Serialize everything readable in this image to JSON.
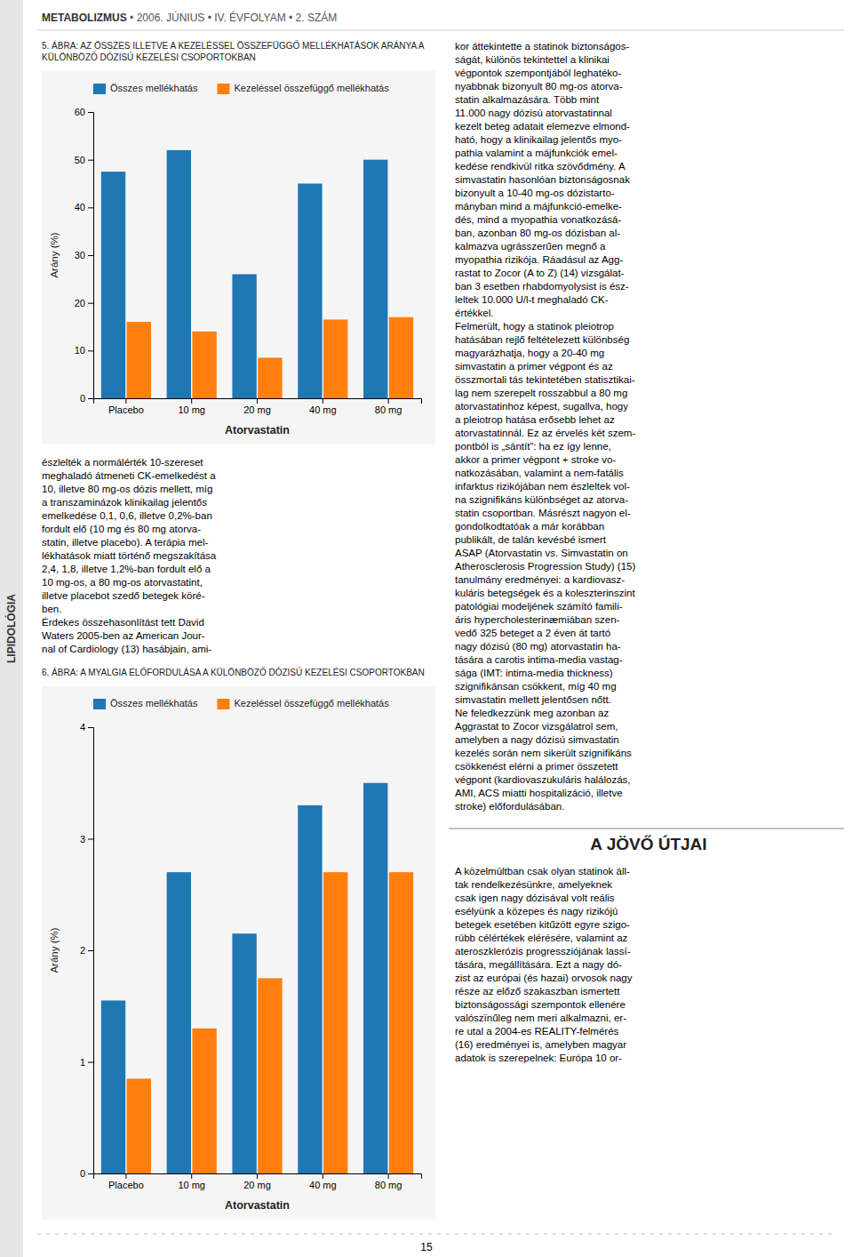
{
  "page": {
    "header": "METABOLIZMUS",
    "header_rest": " • 2006. JÚNIUS • IV. ÉVFOLYAM • 2. SZÁM",
    "sidebar_text": "LIPIDOLÓGIA",
    "page_number": "15",
    "left_col_text": [
      "észlelték a normálérték 10-szereset",
      "meghaladó átmeneti CK-emelkedést a",
      "10, illetve 80 mg-os dózis mellett, míg",
      "a transzaminázok klinikailag jelentős",
      "emelkedése 0,1, 0,6, illetve 0,2%-ban",
      "fordult elő (10 mg és 80 mg atorva-",
      "statin, illetve placebo). A terápia mel-",
      "lékhatások miatt történő megszakítása",
      "2,4, 1,8, illetve 1,2%-ban fordult elő a",
      "10 mg-os, a 80 mg-os atorvastatint,",
      "illetve placebot szedő betegek köré-",
      "ben.",
      "Érdekes összehasonlítást tett David",
      "Waters 2005-ben az American Jour-",
      "nal of Cardiology (13) hasábjain, ami-"
    ],
    "right_col_text_top": [
      "kor áttekintette a statinok biztonságos-",
      "ságát, különös tekintettel a klinikai",
      "végpontok szempontjából leghatéko-",
      "nyabbnak bizonyult 80 mg-os atorva-",
      "statin alkalmazására. Több mint",
      "11.000 nagy dózisú atorvastatinnal",
      "kezelt beteg adatait elemezve elmond-",
      "ható, hogy a klinikailag jelentős myo-",
      "pathia valamint a májfunkciók emel-",
      "kedése rendkivül ritka szövődmény. A",
      "simvastatin hasonlóan biztonságosnak",
      "bizonyult a 10-40 mg-os dózistarto-",
      "mányban mind a májfunkció-emelke-",
      "dés, mind a myopathia vonatkozásá-",
      "ban, azonban 80 mg-os dózisban al-"
    ],
    "right_col_text": [
      "kalmazva ugrásszerűen megnő a",
      "myopathia rizikója. Ráadásul az Agg-",
      "rastat to Zocor (A to Z) (14) vizsgálat-",
      "ban 3 esetben rhabdomyolysist is ész-",
      "leltek 10.000 U/l-t meghaladó CK-",
      "értékkel.",
      "Felmerült, hogy a statinok pleiotrop",
      "hatásában rejlő feltételezett különbség",
      "magyarázhatja, hogy a 20-40 mg",
      "simvastatin a primer végpont és az",
      "összmortali tás tekintetében statisztikai-",
      "lag nem szerepelt rosszabbul a 80 mg",
      "atorvastatinhoz képest, sugallva, hogy",
      "a pleiotrop hatása erősebb lehet az",
      "atorvastatinnál. Ez az érvelés két szem-",
      "pontból is „sántít”: ha ez így lenne,",
      "akkor a primer végpont + stroke vo-",
      "natkozásában, valamint a nem-fatális",
      "infarktus rizikójában nem észleltek vol-",
      "na szignifikáns különbséget az atorva-",
      "statin csoportban. Másrészt nagyon el-",
      "gondolkodtatóak a már korábban",
      "publikált, de talán kevésbé ismert",
      "ASAP (Atorvastatin vs. Simvastatin on",
      "Atherosclerosis Progression Study) (15)",
      "tanulmány eredményei: a kardiovasz-",
      "kuláris betegségek és a koleszterinszint",
      "patológiai modeljének számító famili-",
      "áris hypercholesterinæmiában szen-",
      "vedő 325 beteget a 2 éven át tartó",
      "nagy dózisú (80 mg) atorvastatin ha-",
      "tására a carotis intima-media vastag-",
      "sága (IMT: intima-media thickness)",
      "szignifikánsan csökkent, míg 40 mg",
      "simvastatin mellett jelentősen nőtt.",
      "Ne feledkezzünk meg azonban az",
      "Aggrastat to Zocor vizsgálatrol sem,",
      "amelyben a nagy dózisú simvastatin",
      "kezelés során nem sikerült szignifikáns",
      "csökkenést elérni a primer összetett",
      "végpont (kardiovaszukuláris halálozás,",
      "AMI, ACS miatti hospitalizáció, illetve",
      "stroke) előfordulásában."
    ],
    "section_title": "A JÖVŐ ÚTJAI",
    "right_col_bottom_text": [
      "A közelmúltban csak olyan statinok áll-",
      "tak rendelkezésünkre, amelyeknek",
      "csak igen nagy dózisával volt reális",
      "esélyünk a közepes és nagy rizikójú",
      "betegek esetében kitűzött egyre szigo-",
      "rúbb célértékek elérésére, valamint az",
      "ateroszklerózis progressziójának lassí-",
      "tására, megállítására. Ezt a nagy dó-",
      "zist az európai (és hazai) orvosok nagy",
      "része az előző szakaszban ismertett",
      "biztonságossági szempontok ellenére",
      "valószïnűleg nem meri alkalmazni, er-",
      "re utal a 2004-es REALITY-felmérés",
      "(16) eredményei is, amelyben magyar",
      "adatok is szerepelnek: Európa 10 or-"
    ]
  },
  "chart_data": [
    {
      "type": "bar",
      "title": "5. ÁBRA: AZ ÖSSZES ILLETVE A KEZELÉSSEL ÖSSZEFÜGGŐ MELLÉKHATÁSOK ARÁNYA A KÜLÖNBÖZŐ DÓZISÚ KEZELÉSI CSOPORTOKBAN",
      "categories": [
        "Placebo",
        "10 mg",
        "20 mg",
        "40 mg",
        "80 mg"
      ],
      "series": [
        {
          "name": "Összes mellékhatás",
          "values": [
            47.5,
            52.0,
            26.0,
            45.0,
            50.0
          ]
        },
        {
          "name": "Kezeléssel összefüggő mellékhatás",
          "values": [
            16.0,
            14.0,
            8.5,
            16.5,
            17.0
          ]
        }
      ],
      "xlabel": "Atorvastatin",
      "ylabel": "Arány (%)",
      "ylim": [
        0,
        60
      ],
      "yticks": [
        0,
        10,
        20,
        30,
        40,
        50,
        60
      ],
      "grid": false,
      "legend": "top"
    },
    {
      "type": "bar",
      "title": "6. ÁBRA: A MYALGIA ELŐFORDULÁSA A KÜLÖNBÖZŐ DÓZISÚ KEZELÉSI CSOPORTOKBAN",
      "categories": [
        "Placebo",
        "10 mg",
        "20 mg",
        "40 mg",
        "80 mg"
      ],
      "series": [
        {
          "name": "Összes mellékhatás",
          "values": [
            1.55,
            2.7,
            2.15,
            3.3,
            3.5
          ]
        },
        {
          "name": "Kezeléssel összefüggő mellékhatás",
          "values": [
            0.85,
            1.3,
            1.75,
            2.7,
            2.7
          ]
        }
      ],
      "xlabel": "Atorvastatin",
      "ylabel": "Arány (%)",
      "ylim": [
        0,
        4
      ],
      "yticks": [
        0,
        1,
        2,
        3,
        4
      ],
      "grid": false,
      "legend": "top"
    }
  ]
}
